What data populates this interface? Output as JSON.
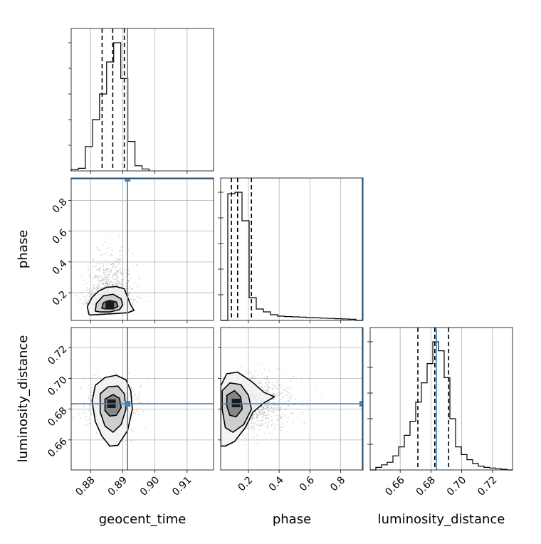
{
  "chart_data": {
    "type": "corner",
    "truth_color": "#4682b4",
    "parameters": [
      "geocent_time",
      "phase",
      "luminosity_distance"
    ],
    "truths": {
      "geocent_time": 0.8915,
      "phase": 0.94,
      "luminosity_distance": 0.6835
    },
    "axes": {
      "geocent_time": {
        "label": "geocent_time",
        "range": [
          0.874,
          0.9182
        ],
        "ticks": [
          0.88,
          0.89,
          0.9,
          0.91
        ],
        "tick_labels": [
          "0.88",
          "0.89",
          "0.90",
          "0.91"
        ]
      },
      "phase": {
        "label": "phase",
        "range": [
          0.02,
          0.945
        ],
        "ticks": [
          0.2,
          0.4,
          0.6,
          0.8
        ],
        "tick_labels": [
          "0.2",
          "0.4",
          "0.6",
          "0.8"
        ]
      },
      "luminosity_distance": {
        "label": "luminosity_distance",
        "range": [
          0.6405,
          0.733
        ],
        "ticks": [
          0.66,
          0.68,
          0.7,
          0.72
        ],
        "tick_labels": [
          "0.66",
          "0.68",
          "0.70",
          "0.72"
        ]
      }
    },
    "histograms": {
      "geocent_time": {
        "bin_edges": [
          0.874,
          0.8762,
          0.8784,
          0.8806,
          0.8828,
          0.885,
          0.8872,
          0.8894,
          0.8916,
          0.8938,
          0.896,
          0.8982
        ],
        "counts": [
          0.01,
          0.02,
          0.19,
          0.4,
          0.6,
          0.85,
          1.0,
          0.72,
          0.23,
          0.04,
          0.015
        ],
        "quantiles": [
          0.8836,
          0.8869,
          0.8905
        ]
      },
      "phase": {
        "bin_edges": [
          0.02,
          0.0662,
          0.1125,
          0.1587,
          0.205,
          0.2512,
          0.2975,
          0.3437,
          0.39,
          0.4362,
          0.4825,
          0.5287,
          0.575,
          0.6212,
          0.6675,
          0.7137,
          0.76,
          0.8062,
          0.8525,
          0.8987,
          0.945
        ],
        "counts": [
          0.0,
          0.89,
          0.9,
          0.7,
          0.16,
          0.08,
          0.06,
          0.04,
          0.03,
          0.027,
          0.025,
          0.023,
          0.02,
          0.018,
          0.016,
          0.014,
          0.012,
          0.01,
          0.008,
          0.0
        ],
        "quantiles": [
          0.09,
          0.13,
          0.22
        ]
      },
      "luminosity_distance": {
        "bin_edges": [
          0.6405,
          0.6442,
          0.6479,
          0.6516,
          0.6553,
          0.659,
          0.6627,
          0.6664,
          0.6701,
          0.6738,
          0.6775,
          0.6812,
          0.6849,
          0.6886,
          0.6923,
          0.696,
          0.6997,
          0.7034,
          0.7071,
          0.7108,
          0.7145,
          0.7182,
          0.7219,
          0.7256,
          0.7293,
          0.733
        ],
        "counts": [
          0.0,
          0.02,
          0.04,
          0.06,
          0.11,
          0.18,
          0.27,
          0.38,
          0.53,
          0.68,
          0.83,
          1.0,
          0.93,
          0.72,
          0.4,
          0.18,
          0.12,
          0.08,
          0.05,
          0.03,
          0.02,
          0.015,
          0.01,
          0.005,
          0.0
        ],
        "quantiles": [
          0.6715,
          0.6825,
          0.6915
        ]
      }
    },
    "joint": [
      {
        "x": "geocent_time",
        "y": "phase",
        "peak": [
          0.886,
          0.12
        ],
        "spread": [
          0.0035,
          0.12
        ],
        "contours": [
          [
            [
              0.8795,
              0.06
            ],
            [
              0.879,
              0.11
            ],
            [
              0.8805,
              0.17
            ],
            [
              0.8825,
              0.21
            ],
            [
              0.885,
              0.235
            ],
            [
              0.888,
              0.24
            ],
            [
              0.8905,
              0.225
            ],
            [
              0.8915,
              0.17
            ],
            [
              0.8925,
              0.12
            ],
            [
              0.8935,
              0.085
            ],
            [
              0.8915,
              0.07
            ],
            [
              0.888,
              0.065
            ],
            [
              0.884,
              0.06
            ],
            [
              0.88,
              0.055
            ]
          ],
          [
            [
              0.8815,
              0.08
            ],
            [
              0.8818,
              0.13
            ],
            [
              0.884,
              0.18
            ],
            [
              0.887,
              0.19
            ],
            [
              0.8895,
              0.16
            ],
            [
              0.89,
              0.12
            ],
            [
              0.889,
              0.09
            ],
            [
              0.886,
              0.075
            ],
            [
              0.883,
              0.075
            ]
          ],
          [
            [
              0.8835,
              0.1
            ],
            [
              0.884,
              0.135
            ],
            [
              0.886,
              0.15
            ],
            [
              0.888,
              0.14
            ],
            [
              0.8885,
              0.11
            ],
            [
              0.887,
              0.095
            ],
            [
              0.8845,
              0.095
            ]
          ]
        ]
      },
      {
        "x": "geocent_time",
        "y": "luminosity_distance",
        "peak": [
          0.8865,
          0.6835
        ],
        "spread": [
          0.0035,
          0.008
        ],
        "contours": [
          [
            [
              0.8815,
              0.6955
            ],
            [
              0.8845,
              0.7005
            ],
            [
              0.888,
              0.702
            ],
            [
              0.891,
              0.699
            ],
            [
              0.8925,
              0.692
            ],
            [
              0.893,
              0.68
            ],
            [
              0.8915,
              0.666
            ],
            [
              0.8885,
              0.6565
            ],
            [
              0.886,
              0.656
            ],
            [
              0.8835,
              0.6625
            ],
            [
              0.8815,
              0.672
            ],
            [
              0.8805,
              0.685
            ]
          ],
          [
            [
              0.883,
              0.69
            ],
            [
              0.8855,
              0.6945
            ],
            [
              0.8885,
              0.695
            ],
            [
              0.8905,
              0.69
            ],
            [
              0.891,
              0.68
            ],
            [
              0.8895,
              0.67
            ],
            [
              0.887,
              0.665
            ],
            [
              0.8845,
              0.669
            ],
            [
              0.883,
              0.678
            ]
          ],
          [
            [
              0.8845,
              0.6865
            ],
            [
              0.887,
              0.6895
            ],
            [
              0.889,
              0.687
            ],
            [
              0.8895,
              0.681
            ],
            [
              0.888,
              0.676
            ],
            [
              0.886,
              0.6755
            ],
            [
              0.8845,
              0.679
            ]
          ]
        ]
      },
      {
        "x": "phase",
        "y": "luminosity_distance",
        "peak": [
          0.12,
          0.684
        ],
        "spread": [
          0.12,
          0.009
        ],
        "contours": [
          [
            [
              0.02,
              0.695
            ],
            [
              0.06,
              0.703
            ],
            [
              0.13,
              0.704
            ],
            [
              0.22,
              0.698
            ],
            [
              0.3,
              0.691
            ],
            [
              0.37,
              0.688
            ],
            [
              0.3,
              0.684
            ],
            [
              0.23,
              0.678
            ],
            [
              0.18,
              0.668
            ],
            [
              0.11,
              0.659
            ],
            [
              0.05,
              0.656
            ],
            [
              0.02,
              0.656
            ]
          ],
          [
            [
              0.03,
              0.692
            ],
            [
              0.08,
              0.697
            ],
            [
              0.15,
              0.696
            ],
            [
              0.2,
              0.689
            ],
            [
              0.22,
              0.68
            ],
            [
              0.17,
              0.67
            ],
            [
              0.1,
              0.665
            ],
            [
              0.05,
              0.668
            ],
            [
              0.03,
              0.68
            ]
          ],
          [
            [
              0.06,
              0.689
            ],
            [
              0.11,
              0.692
            ],
            [
              0.15,
              0.688
            ],
            [
              0.16,
              0.68
            ],
            [
              0.12,
              0.675
            ],
            [
              0.08,
              0.676
            ],
            [
              0.06,
              0.682
            ]
          ]
        ]
      }
    ],
    "grid": true
  }
}
